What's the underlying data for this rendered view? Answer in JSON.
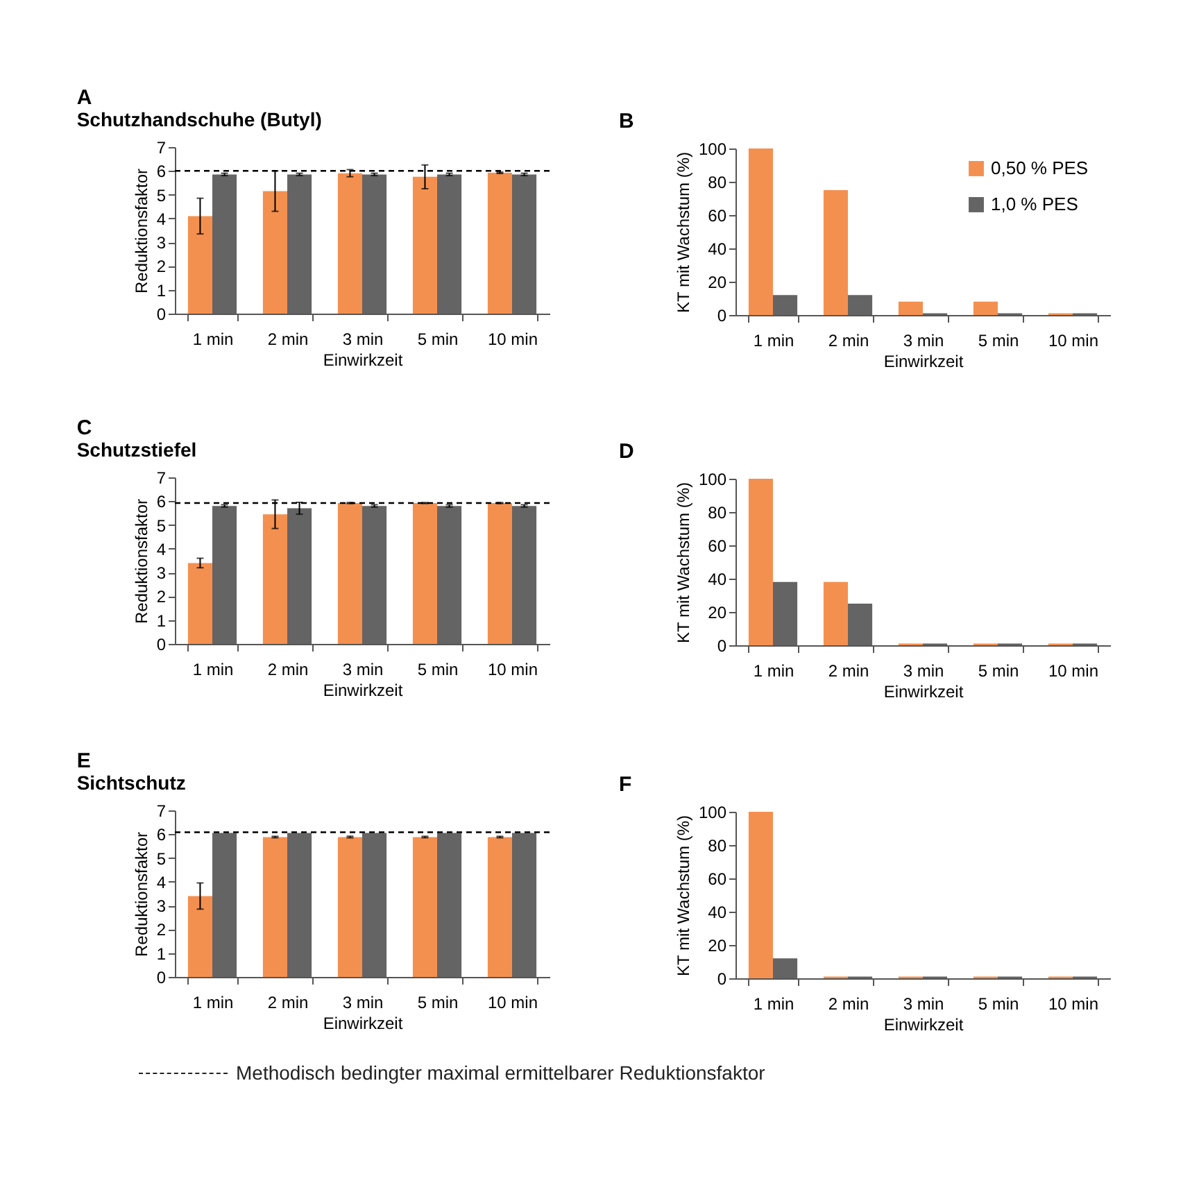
{
  "chart_data": [
    {
      "type": "bar",
      "title": "A",
      "subtitle": "Schutzhandschuhe (Butyl)",
      "xlabel": "Einwirkzeit",
      "ylabel": "Reduktionsfaktor",
      "categories": [
        "1 min",
        "2 min",
        "3 min",
        "5 min",
        "10 min"
      ],
      "ylim": [
        0,
        7
      ],
      "yticks": [
        0,
        1,
        2,
        3,
        4,
        5,
        6,
        7
      ],
      "grid": false,
      "legend": false,
      "series": [
        {
          "color": "#f4904f",
          "values": [
            4.1,
            5.15,
            5.9,
            5.75,
            5.92
          ],
          "errors": [
            0.75,
            0.85,
            0.15,
            0.5,
            0.03
          ]
        },
        {
          "color": "#646464",
          "values": [
            5.85,
            5.85,
            5.85,
            5.85,
            5.85
          ],
          "errors": [
            0.05,
            0.05,
            0.05,
            0.05,
            0.05
          ]
        }
      ],
      "ref_lines": [
        {
          "axis": "y",
          "value": 6.0,
          "line_style": "dashed",
          "color": "#000000"
        }
      ]
    },
    {
      "type": "bar",
      "title": "B",
      "xlabel": "Einwirkzeit",
      "ylabel": "KT mit Wachstum (%)",
      "categories": [
        "1 min",
        "2 min",
        "3 min",
        "5 min",
        "10 min"
      ],
      "ylim": [
        0,
        100
      ],
      "yticks": [
        0,
        20,
        40,
        60,
        80,
        100
      ],
      "grid": false,
      "legend": "top right",
      "series": [
        {
          "name": "0,50 %   PES",
          "color": "#f4904f",
          "values": [
            100,
            75,
            8,
            8,
            1
          ]
        },
        {
          "name": "1,0 %     PES",
          "color": "#646464",
          "values": [
            12,
            12,
            1,
            1,
            1
          ]
        }
      ]
    },
    {
      "type": "bar",
      "title": "C",
      "subtitle": "Schutzstiefel",
      "xlabel": "Einwirkzeit",
      "ylabel": "Reduktionsfaktor",
      "categories": [
        "1 min",
        "2 min",
        "3 min",
        "5 min",
        "10 min"
      ],
      "ylim": [
        0,
        7
      ],
      "yticks": [
        0,
        1,
        2,
        3,
        4,
        5,
        6,
        7
      ],
      "grid": false,
      "legend": false,
      "series": [
        {
          "color": "#f4904f",
          "values": [
            3.4,
            5.45,
            5.92,
            5.92,
            5.92
          ],
          "errors": [
            0.2,
            0.6,
            0.02,
            0.02,
            0.02
          ]
        },
        {
          "color": "#646464",
          "values": [
            5.8,
            5.7,
            5.8,
            5.8,
            5.8
          ],
          "errors": [
            0.05,
            0.25,
            0.05,
            0.05,
            0.05
          ]
        }
      ],
      "ref_lines": [
        {
          "axis": "y",
          "value": 5.92,
          "line_style": "dashed",
          "color": "#000000"
        }
      ]
    },
    {
      "type": "bar",
      "title": "D",
      "xlabel": "Einwirkzeit",
      "ylabel": "KT mit Wachstum (%)",
      "categories": [
        "1 min",
        "2 min",
        "3 min",
        "5 min",
        "10 min"
      ],
      "ylim": [
        0,
        100
      ],
      "yticks": [
        0,
        20,
        40,
        60,
        80,
        100
      ],
      "grid": false,
      "legend": false,
      "series": [
        {
          "color": "#f4904f",
          "values": [
            100,
            38,
            1,
            1,
            1
          ]
        },
        {
          "color": "#646464",
          "values": [
            38,
            25,
            1,
            1,
            1
          ]
        }
      ]
    },
    {
      "type": "bar",
      "title": "E",
      "subtitle": "Sichtschutz",
      "xlabel": "Einwirkzeit",
      "ylabel": "Reduktionsfaktor",
      "categories": [
        "1 min",
        "2 min",
        "3 min",
        "5 min",
        "10 min"
      ],
      "ylim": [
        0,
        7
      ],
      "yticks": [
        0,
        1,
        2,
        3,
        4,
        5,
        6,
        7
      ],
      "grid": false,
      "legend": false,
      "series": [
        {
          "color": "#f4904f",
          "values": [
            3.4,
            5.88,
            5.88,
            5.88,
            5.88
          ],
          "errors": [
            0.55,
            0.03,
            0.03,
            0.03,
            0.03
          ]
        },
        {
          "color": "#646464",
          "values": [
            6.05,
            6.05,
            6.05,
            6.05,
            6.05
          ]
        }
      ],
      "ref_lines": [
        {
          "axis": "y",
          "value": 6.08,
          "line_style": "dashed",
          "color": "#000000"
        }
      ],
      "annotations": [
        "Methodisch bedingter maximal ermittelbarer Reduktionsfaktor"
      ]
    },
    {
      "type": "bar",
      "title": "F",
      "xlabel": "Einwirkzeit",
      "ylabel": "KT mit Wachstum (%)",
      "categories": [
        "1 min",
        "2 min",
        "3 min",
        "5 min",
        "10 min"
      ],
      "ylim": [
        0,
        100
      ],
      "yticks": [
        0,
        20,
        40,
        60,
        80,
        100
      ],
      "grid": false,
      "legend": false,
      "series": [
        {
          "color": "#f4904f",
          "values": [
            100,
            1,
            1,
            1,
            1
          ]
        },
        {
          "color": "#646464",
          "values": [
            12,
            1,
            1,
            1,
            1
          ]
        }
      ]
    }
  ]
}
